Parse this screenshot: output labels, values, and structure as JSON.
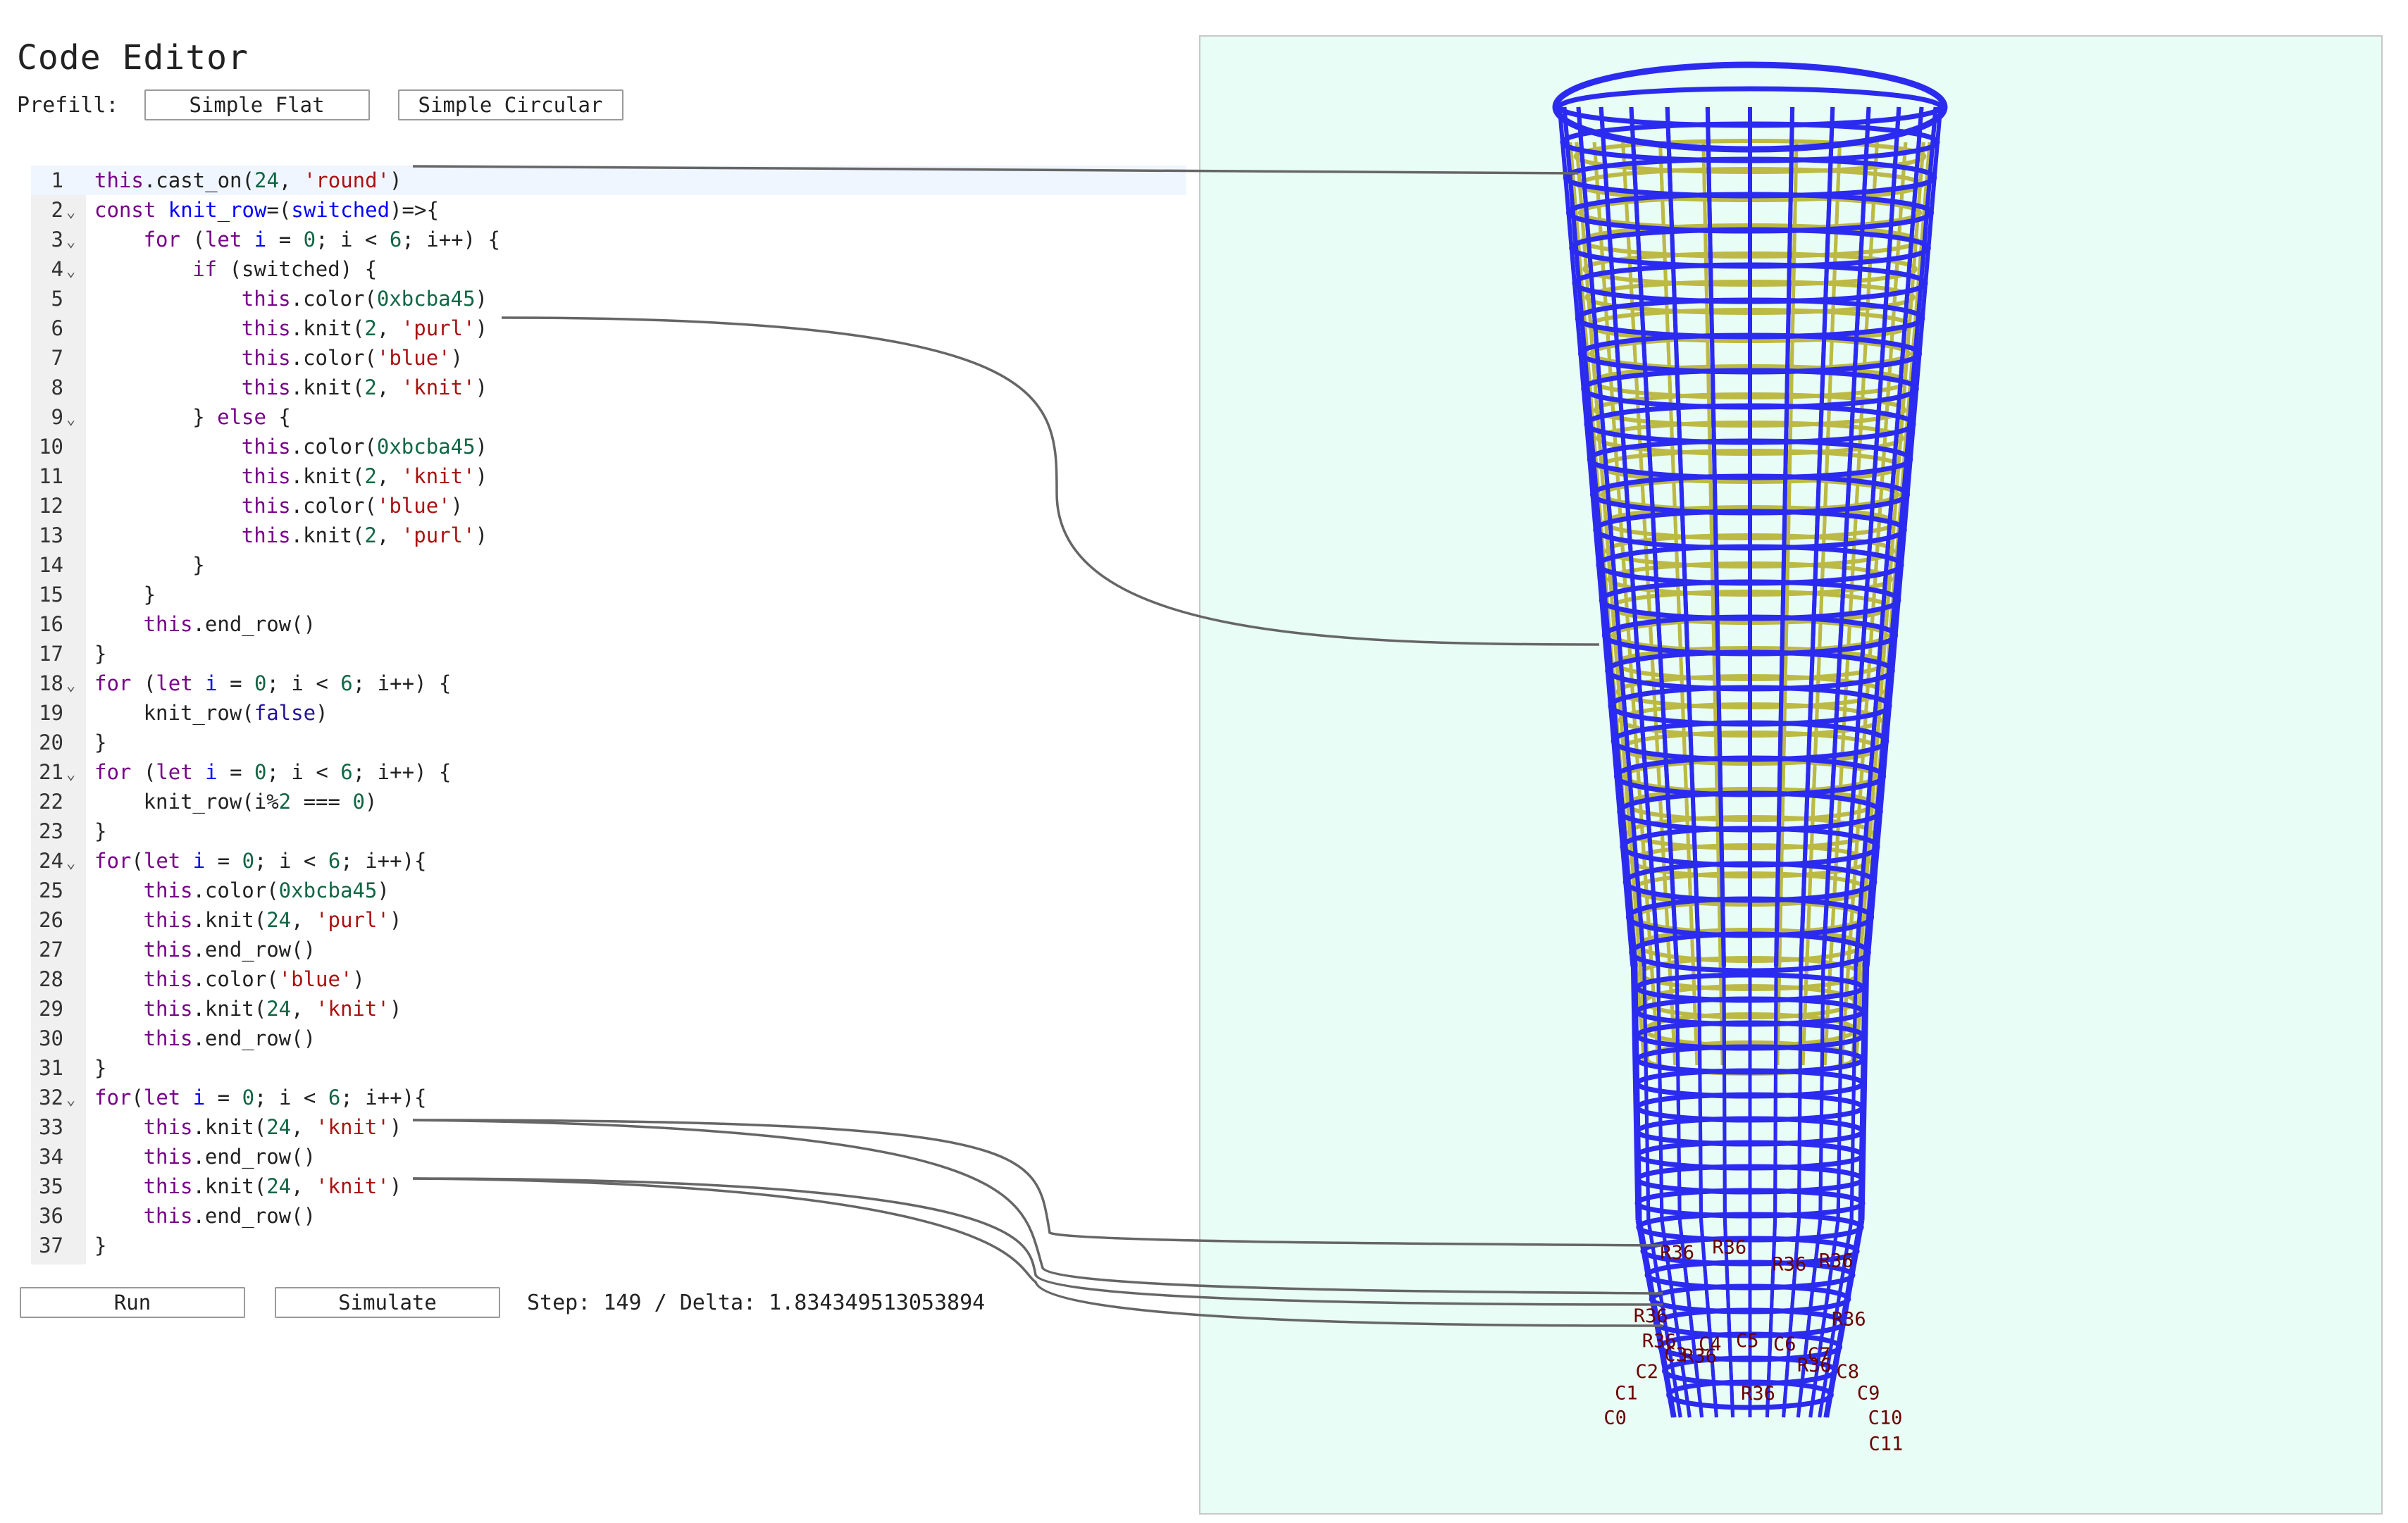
{
  "editor": {
    "title": "Code Editor",
    "prefill_label": "Prefill:",
    "prefill_buttons": [
      "Simple Flat",
      "Simple Circular"
    ]
  },
  "code": [
    {
      "n": "1",
      "fold": false,
      "indent": 0,
      "tokens": [
        [
          "kw",
          "this"
        ],
        [
          "p",
          ".cast_on("
        ],
        [
          "num",
          "24"
        ],
        [
          "p",
          ", "
        ],
        [
          "str",
          "'round'"
        ],
        [
          "p",
          ")"
        ]
      ]
    },
    {
      "n": "2",
      "fold": true,
      "indent": 0,
      "tokens": [
        [
          "kw",
          "const"
        ],
        [
          "p",
          " "
        ],
        [
          "def",
          "knit_row"
        ],
        [
          "p",
          "=("
        ],
        [
          "def",
          "switched"
        ],
        [
          "p",
          ")=>{"
        ]
      ]
    },
    {
      "n": "3",
      "fold": true,
      "indent": 4,
      "tokens": [
        [
          "kw",
          "for"
        ],
        [
          "p",
          " ("
        ],
        [
          "kw",
          "let"
        ],
        [
          "p",
          " "
        ],
        [
          "def",
          "i"
        ],
        [
          "p",
          " = "
        ],
        [
          "num",
          "0"
        ],
        [
          "p",
          "; i < "
        ],
        [
          "num",
          "6"
        ],
        [
          "p",
          "; i++) {"
        ]
      ]
    },
    {
      "n": "4",
      "fold": true,
      "indent": 8,
      "tokens": [
        [
          "kw",
          "if"
        ],
        [
          "p",
          " ("
        ],
        [
          "p",
          "switched"
        ],
        [
          "p",
          ") {"
        ]
      ]
    },
    {
      "n": "5",
      "fold": false,
      "indent": 12,
      "tokens": [
        [
          "kw",
          "this"
        ],
        [
          "p",
          ".color("
        ],
        [
          "num",
          "0xbcba45"
        ],
        [
          "p",
          ")"
        ]
      ]
    },
    {
      "n": "6",
      "fold": false,
      "indent": 12,
      "tokens": [
        [
          "kw",
          "this"
        ],
        [
          "p",
          ".knit("
        ],
        [
          "num",
          "2"
        ],
        [
          "p",
          ", "
        ],
        [
          "str",
          "'purl'"
        ],
        [
          "p",
          ")"
        ]
      ]
    },
    {
      "n": "7",
      "fold": false,
      "indent": 12,
      "tokens": [
        [
          "kw",
          "this"
        ],
        [
          "p",
          ".color("
        ],
        [
          "str",
          "'blue'"
        ],
        [
          "p",
          ")"
        ]
      ]
    },
    {
      "n": "8",
      "fold": false,
      "indent": 12,
      "tokens": [
        [
          "kw",
          "this"
        ],
        [
          "p",
          ".knit("
        ],
        [
          "num",
          "2"
        ],
        [
          "p",
          ", "
        ],
        [
          "str",
          "'knit'"
        ],
        [
          "p",
          ")"
        ]
      ]
    },
    {
      "n": "9",
      "fold": true,
      "indent": 8,
      "tokens": [
        [
          "p",
          "} "
        ],
        [
          "kw",
          "else"
        ],
        [
          "p",
          " {"
        ]
      ]
    },
    {
      "n": "10",
      "fold": false,
      "indent": 12,
      "tokens": [
        [
          "kw",
          "this"
        ],
        [
          "p",
          ".color("
        ],
        [
          "num",
          "0xbcba45"
        ],
        [
          "p",
          ")"
        ]
      ]
    },
    {
      "n": "11",
      "fold": false,
      "indent": 12,
      "tokens": [
        [
          "kw",
          "this"
        ],
        [
          "p",
          ".knit("
        ],
        [
          "num",
          "2"
        ],
        [
          "p",
          ", "
        ],
        [
          "str",
          "'knit'"
        ],
        [
          "p",
          ")"
        ]
      ]
    },
    {
      "n": "12",
      "fold": false,
      "indent": 12,
      "tokens": [
        [
          "kw",
          "this"
        ],
        [
          "p",
          ".color("
        ],
        [
          "str",
          "'blue'"
        ],
        [
          "p",
          ")"
        ]
      ]
    },
    {
      "n": "13",
      "fold": false,
      "indent": 12,
      "tokens": [
        [
          "kw",
          "this"
        ],
        [
          "p",
          ".knit("
        ],
        [
          "num",
          "2"
        ],
        [
          "p",
          ", "
        ],
        [
          "str",
          "'purl'"
        ],
        [
          "p",
          ")"
        ]
      ]
    },
    {
      "n": "14",
      "fold": false,
      "indent": 8,
      "tokens": [
        [
          "p",
          "}"
        ]
      ]
    },
    {
      "n": "15",
      "fold": false,
      "indent": 4,
      "tokens": [
        [
          "p",
          "}"
        ]
      ]
    },
    {
      "n": "16",
      "fold": false,
      "indent": 4,
      "tokens": [
        [
          "kw",
          "this"
        ],
        [
          "p",
          ".end_row()"
        ]
      ]
    },
    {
      "n": "17",
      "fold": false,
      "indent": 0,
      "tokens": [
        [
          "p",
          "}"
        ]
      ]
    },
    {
      "n": "18",
      "fold": true,
      "indent": 0,
      "tokens": [
        [
          "kw",
          "for"
        ],
        [
          "p",
          " ("
        ],
        [
          "kw",
          "let"
        ],
        [
          "p",
          " "
        ],
        [
          "def",
          "i"
        ],
        [
          "p",
          " = "
        ],
        [
          "num",
          "0"
        ],
        [
          "p",
          "; i < "
        ],
        [
          "num",
          "6"
        ],
        [
          "p",
          "; i++) {"
        ]
      ]
    },
    {
      "n": "19",
      "fold": false,
      "indent": 4,
      "tokens": [
        [
          "p",
          "knit_row("
        ],
        [
          "atom",
          "false"
        ],
        [
          "p",
          ")"
        ]
      ]
    },
    {
      "n": "20",
      "fold": false,
      "indent": 0,
      "tokens": [
        [
          "p",
          "}"
        ]
      ]
    },
    {
      "n": "21",
      "fold": true,
      "indent": 0,
      "tokens": [
        [
          "kw",
          "for"
        ],
        [
          "p",
          " ("
        ],
        [
          "kw",
          "let"
        ],
        [
          "p",
          " "
        ],
        [
          "def",
          "i"
        ],
        [
          "p",
          " = "
        ],
        [
          "num",
          "0"
        ],
        [
          "p",
          "; i < "
        ],
        [
          "num",
          "6"
        ],
        [
          "p",
          "; i++) {"
        ]
      ]
    },
    {
      "n": "22",
      "fold": false,
      "indent": 4,
      "tokens": [
        [
          "p",
          "knit_row(i%"
        ],
        [
          "num",
          "2"
        ],
        [
          "p",
          " === "
        ],
        [
          "num",
          "0"
        ],
        [
          "p",
          ")"
        ]
      ]
    },
    {
      "n": "23",
      "fold": false,
      "indent": 0,
      "tokens": [
        [
          "p",
          "}"
        ]
      ]
    },
    {
      "n": "24",
      "fold": true,
      "indent": 0,
      "tokens": [
        [
          "kw",
          "for"
        ],
        [
          "p",
          "("
        ],
        [
          "kw",
          "let"
        ],
        [
          "p",
          " "
        ],
        [
          "def",
          "i"
        ],
        [
          "p",
          " = "
        ],
        [
          "num",
          "0"
        ],
        [
          "p",
          "; i < "
        ],
        [
          "num",
          "6"
        ],
        [
          "p",
          "; i++){"
        ]
      ]
    },
    {
      "n": "25",
      "fold": false,
      "indent": 4,
      "tokens": [
        [
          "kw",
          "this"
        ],
        [
          "p",
          ".color("
        ],
        [
          "num",
          "0xbcba45"
        ],
        [
          "p",
          ")"
        ]
      ]
    },
    {
      "n": "26",
      "fold": false,
      "indent": 4,
      "tokens": [
        [
          "kw",
          "this"
        ],
        [
          "p",
          ".knit("
        ],
        [
          "num",
          "24"
        ],
        [
          "p",
          ", "
        ],
        [
          "str",
          "'purl'"
        ],
        [
          "p",
          ")"
        ]
      ]
    },
    {
      "n": "27",
      "fold": false,
      "indent": 4,
      "tokens": [
        [
          "kw",
          "this"
        ],
        [
          "p",
          ".end_row()"
        ]
      ]
    },
    {
      "n": "28",
      "fold": false,
      "indent": 4,
      "tokens": [
        [
          "kw",
          "this"
        ],
        [
          "p",
          ".color("
        ],
        [
          "str",
          "'blue'"
        ],
        [
          "p",
          ")"
        ]
      ]
    },
    {
      "n": "29",
      "fold": false,
      "indent": 4,
      "tokens": [
        [
          "kw",
          "this"
        ],
        [
          "p",
          ".knit("
        ],
        [
          "num",
          "24"
        ],
        [
          "p",
          ", "
        ],
        [
          "str",
          "'knit'"
        ],
        [
          "p",
          ")"
        ]
      ]
    },
    {
      "n": "30",
      "fold": false,
      "indent": 4,
      "tokens": [
        [
          "kw",
          "this"
        ],
        [
          "p",
          ".end_row()"
        ]
      ]
    },
    {
      "n": "31",
      "fold": false,
      "indent": 0,
      "tokens": [
        [
          "p",
          "}"
        ]
      ]
    },
    {
      "n": "32",
      "fold": true,
      "indent": 0,
      "tokens": [
        [
          "kw",
          "for"
        ],
        [
          "p",
          "("
        ],
        [
          "kw",
          "let"
        ],
        [
          "p",
          " "
        ],
        [
          "def",
          "i"
        ],
        [
          "p",
          " = "
        ],
        [
          "num",
          "0"
        ],
        [
          "p",
          "; i < "
        ],
        [
          "num",
          "6"
        ],
        [
          "p",
          "; i++){"
        ]
      ]
    },
    {
      "n": "33",
      "fold": false,
      "indent": 4,
      "tokens": [
        [
          "kw",
          "this"
        ],
        [
          "p",
          ".knit("
        ],
        [
          "num",
          "24"
        ],
        [
          "p",
          ", "
        ],
        [
          "str",
          "'knit'"
        ],
        [
          "p",
          ")"
        ]
      ]
    },
    {
      "n": "34",
      "fold": false,
      "indent": 4,
      "tokens": [
        [
          "kw",
          "this"
        ],
        [
          "p",
          ".end_row()"
        ]
      ]
    },
    {
      "n": "35",
      "fold": false,
      "indent": 4,
      "tokens": [
        [
          "kw",
          "this"
        ],
        [
          "p",
          ".knit("
        ],
        [
          "num",
          "24"
        ],
        [
          "p",
          ", "
        ],
        [
          "str",
          "'knit'"
        ],
        [
          "p",
          ")"
        ]
      ]
    },
    {
      "n": "36",
      "fold": false,
      "indent": 4,
      "tokens": [
        [
          "kw",
          "this"
        ],
        [
          "p",
          ".end_row()"
        ]
      ]
    },
    {
      "n": "37",
      "fold": false,
      "indent": 0,
      "tokens": [
        [
          "p",
          "}"
        ]
      ]
    }
  ],
  "controls": {
    "run_label": "Run",
    "simulate_label": "Simulate",
    "status": "Step: 149 / Delta: 1.834349513053894"
  },
  "viewport": {
    "background": "#e8fdf5",
    "yarn_colors": {
      "blue": "#2b2bf0",
      "gold": "#bcba45"
    },
    "row_label": "R36",
    "column_labels": [
      "C0",
      "C1",
      "C2",
      "C3",
      "C4",
      "C5",
      "C6",
      "C7",
      "C8",
      "C9",
      "C10",
      "C11"
    ]
  }
}
